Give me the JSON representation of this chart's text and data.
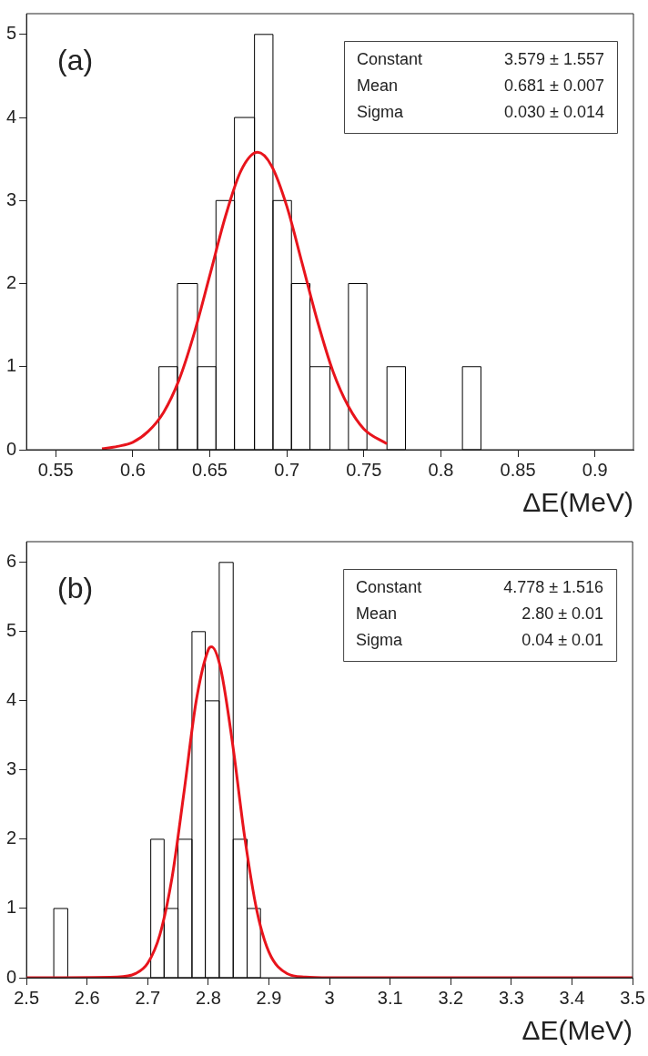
{
  "chart_data": [
    {
      "type": "histogram",
      "xlabel": "ΔE(MeV)",
      "xlim": [
        0.531,
        0.925
      ],
      "xticks": [
        0.55,
        0.6,
        0.65,
        0.7,
        0.75,
        0.8,
        0.85,
        0.9
      ],
      "ylim": [
        0,
        5.25
      ],
      "yticks": [
        0,
        1,
        2,
        3,
        4,
        5
      ],
      "grid": false,
      "legend": false,
      "annotations": [
        "(a)",
        "Constant",
        "3.579 ± 1.557",
        "Mean",
        "0.681 ± 0.007",
        "Sigma",
        "0.030 ± 0.014"
      ],
      "color": "#000000",
      "bins": [
        0.617,
        0.629,
        0.642,
        0.654,
        0.666,
        0.679,
        0.691,
        0.703,
        0.715,
        0.728,
        0.74,
        0.752,
        0.765,
        0.777,
        0.814,
        0.826
      ],
      "values": [
        1,
        2,
        1,
        3,
        4,
        5,
        3,
        2,
        1,
        0,
        2,
        0,
        1,
        0,
        1
      ],
      "series": [
        {
          "type": "line",
          "color": "#e8141c",
          "x": [
            0.58,
            0.59,
            0.6,
            0.61,
            0.62,
            0.63,
            0.64,
            0.65,
            0.66,
            0.67,
            0.681,
            0.69,
            0.7,
            0.71,
            0.72,
            0.73,
            0.74,
            0.75,
            0.765
          ],
          "values": [
            0.01,
            0.04,
            0.09,
            0.22,
            0.45,
            0.84,
            1.41,
            2.1,
            2.8,
            3.35,
            3.58,
            3.42,
            2.93,
            2.24,
            1.54,
            0.94,
            0.52,
            0.25,
            0.07
          ]
        }
      ]
    },
    {
      "type": "histogram",
      "xlabel": "ΔE(MeV)",
      "xlim": [
        2.5,
        3.5
      ],
      "xticks": [
        2.5,
        2.6,
        2.7,
        2.8,
        2.9,
        3,
        3.1,
        3.2,
        3.3,
        3.4,
        3.5
      ],
      "ylim": [
        0,
        6.3
      ],
      "yticks": [
        0,
        1,
        2,
        3,
        4,
        5,
        6
      ],
      "grid": false,
      "legend": false,
      "annotations": [
        "(b)",
        "Constant",
        "4.778 ± 1.516",
        "Mean",
        "2.80 ± 0.01",
        "Sigma",
        "0.04 ± 0.01"
      ],
      "color": "#000000",
      "bins": [
        2.545,
        2.568,
        2.705,
        2.727,
        2.75,
        2.773,
        2.795,
        2.818,
        2.841,
        2.864,
        2.886
      ],
      "values": [
        1,
        0,
        2,
        1,
        2,
        5,
        4,
        6,
        2,
        1
      ],
      "series": [
        {
          "type": "line",
          "color": "#e8141c",
          "x": [
            2.5,
            2.65,
            2.68,
            2.7,
            2.72,
            2.74,
            2.76,
            2.78,
            2.8,
            2.805,
            2.82,
            2.84,
            2.86,
            2.88,
            2.9,
            2.93,
            2.96,
            3.0,
            3.5
          ],
          "values": [
            0,
            0.01,
            0.06,
            0.21,
            0.62,
            1.44,
            2.69,
            4.0,
            4.74,
            4.78,
            4.48,
            3.38,
            2.03,
            0.97,
            0.37,
            0.06,
            0.01,
            0,
            0
          ]
        }
      ]
    }
  ]
}
